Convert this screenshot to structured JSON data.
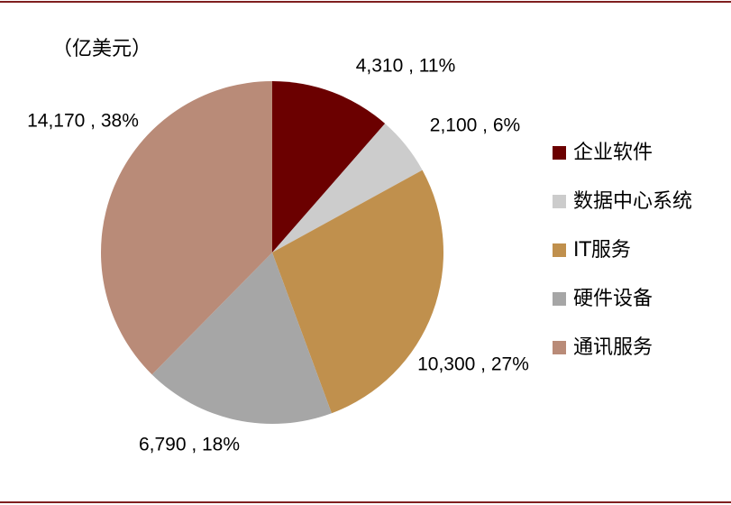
{
  "chart_data": {
    "type": "pie",
    "subtitle": "（亿美元）",
    "categories": [
      "企业软件",
      "数据中心系统",
      "IT服务",
      "硬件设备",
      "通讯服务"
    ],
    "values": [
      4310,
      2100,
      10300,
      6790,
      14170
    ],
    "value_labels": [
      "4,310 , 11%",
      "2,100 , 6%",
      "10,300 , 27%",
      "6,790 , 18%",
      "14,170 , 38%"
    ],
    "colors": [
      "#6b0000",
      "#cccccc",
      "#c0904d",
      "#a6a6a6",
      "#b98b78"
    ],
    "legend": "right"
  }
}
